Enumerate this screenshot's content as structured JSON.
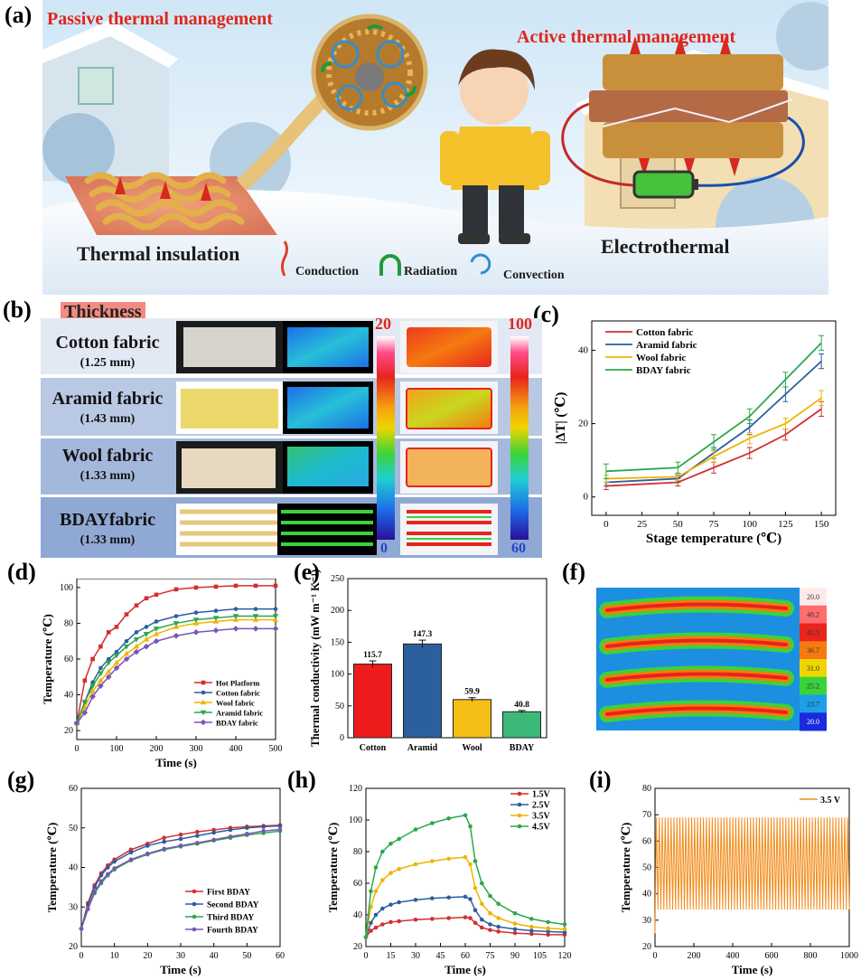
{
  "panels": {
    "a": "(a)",
    "b": "(b)",
    "c": "(c)",
    "d": "(d)",
    "e": "(e)",
    "f": "(f)",
    "g": "(g)",
    "h": "(h)",
    "i": "(i)"
  },
  "panel_a": {
    "passive_title": "Passive thermal management",
    "active_title": "Active thermal management",
    "thermal_insulation": "Thermal insulation",
    "electrothermal": "Electrothermal",
    "legend": {
      "conduction": "Conduction",
      "radiation": "Radiation",
      "convection": "Convection"
    },
    "colors": {
      "title": "#e0251b",
      "conduction": "#e0402a",
      "radiation": "#1f9a3a",
      "convection": "#2f8fd0"
    }
  },
  "panel_b": {
    "header": "Thickness",
    "rows": [
      {
        "name": "Cotton fabric",
        "thickness": "(1.25 mm)"
      },
      {
        "name": "Aramid fabric",
        "thickness": "(1.43 mm)"
      },
      {
        "name": "Wool fabric",
        "thickness": "(1.33 mm)"
      },
      {
        "name": "BDAYfabric",
        "thickness": "(1.33 mm)"
      }
    ],
    "scale1": {
      "max": "20",
      "min": "0"
    },
    "scale2": {
      "max": "100",
      "min": "60"
    }
  },
  "chart_data": [
    {
      "id": "c",
      "type": "line",
      "xlabel": "Stage temperature (℃)",
      "ylabel": "|ΔT| (℃)",
      "x": [
        0,
        50,
        75,
        100,
        125,
        150
      ],
      "xlim": [
        -10,
        160
      ],
      "ylim": [
        -5,
        48
      ],
      "xticks": [
        0,
        25,
        50,
        75,
        100,
        125,
        150
      ],
      "yticks": [
        0,
        20,
        40
      ],
      "legend_position": "top-left",
      "series": [
        {
          "name": "Cotton fabric",
          "color": "#d32f2f",
          "values": [
            3,
            4,
            8,
            12,
            17,
            24
          ],
          "err": [
            1,
            1,
            1.5,
            1.5,
            1.5,
            2
          ]
        },
        {
          "name": "Aramid fabric",
          "color": "#2c5f9e",
          "values": [
            4,
            5,
            12,
            19,
            28,
            37
          ],
          "err": [
            1,
            1,
            1.5,
            2,
            2,
            2
          ]
        },
        {
          "name": "Wool fabric",
          "color": "#f0b400",
          "values": [
            5,
            5.5,
            11,
            16,
            20,
            27
          ],
          "err": [
            1,
            1,
            1.5,
            1.5,
            1.5,
            2
          ]
        },
        {
          "name": "BDAY fabric",
          "color": "#2ba84a",
          "values": [
            7,
            8,
            15,
            22,
            32,
            42
          ],
          "err": [
            2,
            1.5,
            2,
            2,
            2,
            2
          ]
        }
      ]
    },
    {
      "id": "d",
      "type": "line",
      "xlabel": "Time (s)",
      "ylabel": "Temperature (℃)",
      "x": [
        0,
        20,
        40,
        60,
        80,
        100,
        125,
        150,
        175,
        200,
        250,
        300,
        350,
        400,
        450,
        500
      ],
      "xlim": [
        0,
        500
      ],
      "ylim": [
        15,
        105
      ],
      "xticks": [
        0,
        100,
        200,
        300,
        400,
        500
      ],
      "yticks": [
        20,
        40,
        60,
        80,
        100
      ],
      "legend_position": "bottom-right",
      "series": [
        {
          "name": "Hot Platform",
          "color": "#d32f2f",
          "marker": "square",
          "values": [
            24,
            48,
            60,
            67,
            75,
            78,
            85,
            90,
            94,
            96,
            99,
            100,
            100.5,
            101,
            101,
            101
          ]
        },
        {
          "name": "Cotton fabric",
          "color": "#2c5f9e",
          "marker": "circle",
          "values": [
            24,
            36,
            47,
            55,
            60,
            64,
            70,
            75,
            78,
            81,
            84,
            86,
            87,
            88,
            88,
            88
          ]
        },
        {
          "name": "Wool fabric",
          "color": "#f0b400",
          "marker": "triangle",
          "values": [
            24,
            33,
            42,
            48,
            53,
            58,
            63,
            67,
            71,
            74,
            78,
            80,
            81,
            82,
            82,
            82
          ]
        },
        {
          "name": "Aramid fabric",
          "color": "#2ba84a",
          "marker": "triangle-down",
          "values": [
            24,
            36,
            45,
            52,
            58,
            62,
            67,
            71,
            74,
            77,
            80,
            82,
            83,
            84,
            84,
            84
          ]
        },
        {
          "name": "BDAY fabric",
          "color": "#7a56b5",
          "marker": "diamond",
          "values": [
            24,
            30,
            39,
            45,
            50,
            55,
            60,
            64,
            67,
            70,
            73,
            75,
            76,
            77,
            77,
            77
          ]
        }
      ]
    },
    {
      "id": "e",
      "type": "bar",
      "ylabel": "Thermal conductivity (mW m⁻¹ K⁻¹)",
      "categories": [
        "Cotton",
        "Aramid",
        "Wool",
        "BDAY"
      ],
      "values": [
        115.7,
        147.3,
        59.9,
        40.8
      ],
      "value_labels": [
        "115.7",
        "147.3",
        "59.9",
        "40.8"
      ],
      "err": [
        5,
        6,
        3,
        2
      ],
      "colors": [
        "#ee1c1c",
        "#2c5f9e",
        "#f5bf16",
        "#3cb878"
      ],
      "ylim": [
        0,
        250
      ],
      "yticks": [
        0,
        50,
        100,
        150,
        200,
        250
      ]
    },
    {
      "id": "f",
      "type": "heatmap",
      "scale_values": [
        "20.0",
        "48.2",
        "42.5",
        "36.7",
        "31.0",
        "25.2",
        "23.7",
        "20.0"
      ],
      "colors": [
        "#ffeaea",
        "#ff6d6d",
        "#e8241d",
        "#f57a10",
        "#eed500",
        "#3ad33a",
        "#1d9ee8",
        "#1a2bdb"
      ]
    },
    {
      "id": "g",
      "type": "line",
      "xlabel": "Time (s)",
      "ylabel": "Temperature (℃)",
      "x": [
        0,
        2,
        4,
        6,
        8,
        10,
        15,
        20,
        25,
        30,
        35,
        40,
        45,
        50,
        55,
        60
      ],
      "xlim": [
        0,
        60
      ],
      "ylim": [
        20,
        60
      ],
      "xticks": [
        0,
        10,
        20,
        30,
        40,
        50,
        60
      ],
      "yticks": [
        20,
        30,
        40,
        50,
        60
      ],
      "legend_position": "bottom-right",
      "series": [
        {
          "name": "First BDAY",
          "color": "#d32f2f",
          "values": [
            24.5,
            31,
            35.5,
            38.5,
            40.5,
            42,
            44.5,
            46,
            47.5,
            48.3,
            49,
            49.5,
            50,
            50.3,
            50.5,
            50.7
          ]
        },
        {
          "name": "Second BDAY",
          "color": "#2c5f9e",
          "values": [
            24.5,
            30.5,
            35,
            38,
            40,
            41.5,
            43.8,
            45.5,
            46.5,
            47.2,
            48,
            48.8,
            49.5,
            50,
            50.3,
            50.5
          ]
        },
        {
          "name": "Third BDAY",
          "color": "#2ba84a",
          "values": [
            24.5,
            29.5,
            33.5,
            36,
            38,
            39.5,
            41.8,
            43.3,
            44.5,
            45.3,
            46,
            46.8,
            47.5,
            48.2,
            48.7,
            49.2
          ]
        },
        {
          "name": "Fourth BDAY",
          "color": "#7a56b5",
          "values": [
            24.5,
            29.5,
            33.8,
            36.5,
            38.3,
            39.8,
            42,
            43.5,
            44.7,
            45.5,
            46.2,
            47,
            47.8,
            48.5,
            49.2,
            49.6
          ]
        }
      ]
    },
    {
      "id": "h",
      "type": "line",
      "xlabel": "Time (s)",
      "ylabel": "Temperature (℃)",
      "x": [
        0,
        3,
        6,
        10,
        15,
        20,
        30,
        40,
        50,
        60,
        63,
        66,
        70,
        75,
        80,
        90,
        100,
        110,
        120
      ],
      "xlim": [
        0,
        120
      ],
      "ylim": [
        20,
        120
      ],
      "xticks": [
        0,
        15,
        30,
        45,
        60,
        75,
        90,
        105,
        120
      ],
      "yticks": [
        20,
        40,
        60,
        80,
        100,
        120
      ],
      "legend_position": "top-right",
      "series": [
        {
          "name": "1.5V",
          "color": "#d32f2f",
          "values": [
            26,
            30,
            32,
            34,
            35.5,
            36,
            37,
            37.5,
            38,
            38.5,
            38,
            35,
            32,
            30.5,
            29.5,
            28.5,
            28,
            27.5,
            27.5
          ]
        },
        {
          "name": "2.5V",
          "color": "#2c5f9e",
          "values": [
            26,
            35,
            40,
            44,
            46.5,
            48,
            49.5,
            50.5,
            51,
            51.5,
            50,
            43,
            37,
            34,
            32.5,
            31,
            30,
            29.5,
            29
          ]
        },
        {
          "name": "3.5V",
          "color": "#f0b400",
          "values": [
            26,
            45,
            55,
            62,
            66.5,
            69,
            72,
            74,
            75.5,
            76.5,
            72,
            57,
            47,
            41,
            38,
            34.5,
            32.5,
            31.5,
            31
          ]
        },
        {
          "name": "4.5V",
          "color": "#2ba84a",
          "values": [
            26,
            55,
            70,
            80,
            85,
            88,
            94,
            98,
            101,
            103,
            96,
            74,
            60,
            52,
            47,
            41,
            37.5,
            35.5,
            34
          ]
        }
      ]
    },
    {
      "id": "i",
      "type": "line",
      "xlabel": "Time (s)",
      "ylabel": "Temperature (℃)",
      "xlim": [
        0,
        1000
      ],
      "ylim": [
        20,
        80
      ],
      "xticks": [
        0,
        200,
        400,
        600,
        800,
        1000
      ],
      "yticks": [
        20,
        30,
        40,
        50,
        60,
        70,
        80
      ],
      "legend_position": "top-right",
      "series": [
        {
          "name": "3.5 V",
          "color": "#f28c1b",
          "cycles": 66,
          "min": 34,
          "max": 69,
          "start": 25
        }
      ]
    }
  ]
}
